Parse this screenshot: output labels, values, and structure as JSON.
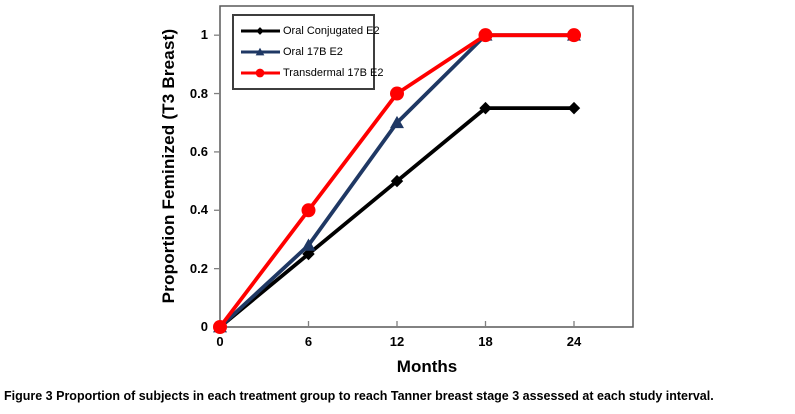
{
  "figure": {
    "caption_label": "Figure 3",
    "caption_text": "Proportion of subjects in each treatment group to reach Tanner breast stage 3 assessed at each study interval."
  },
  "chart_data": {
    "type": "line",
    "title": "",
    "xlabel": "Months",
    "ylabel": "Proportion Feminized (T3 Breast)",
    "x": [
      0,
      6,
      12,
      18,
      24
    ],
    "x_tick_labels": [
      "0",
      "6",
      "12",
      "18",
      "24"
    ],
    "y_ticks": [
      0,
      0.2,
      0.4,
      0.6,
      0.8,
      1
    ],
    "y_tick_labels": [
      "0",
      "0.2",
      "0.4",
      "0.6",
      "0.8",
      "1"
    ],
    "xlim": [
      0,
      28
    ],
    "ylim": [
      0,
      1.1
    ],
    "grid": false,
    "legend_position": "top-left-inside",
    "axis_color": "#595959",
    "tick_color": "#808080",
    "series": [
      {
        "name": "Oral Conjugated E2",
        "color": "#000000",
        "marker": "diamond",
        "values": [
          0,
          0.25,
          0.5,
          0.75,
          0.75
        ]
      },
      {
        "name": "Oral 17B E2",
        "color": "#1F3864",
        "marker": "triangle",
        "values": [
          0,
          0.28,
          0.7,
          1,
          1
        ]
      },
      {
        "name": "Transdermal 17B E2",
        "color": "#FF0000",
        "marker": "circle",
        "values": [
          0,
          0.4,
          0.8,
          1,
          1
        ]
      }
    ]
  }
}
